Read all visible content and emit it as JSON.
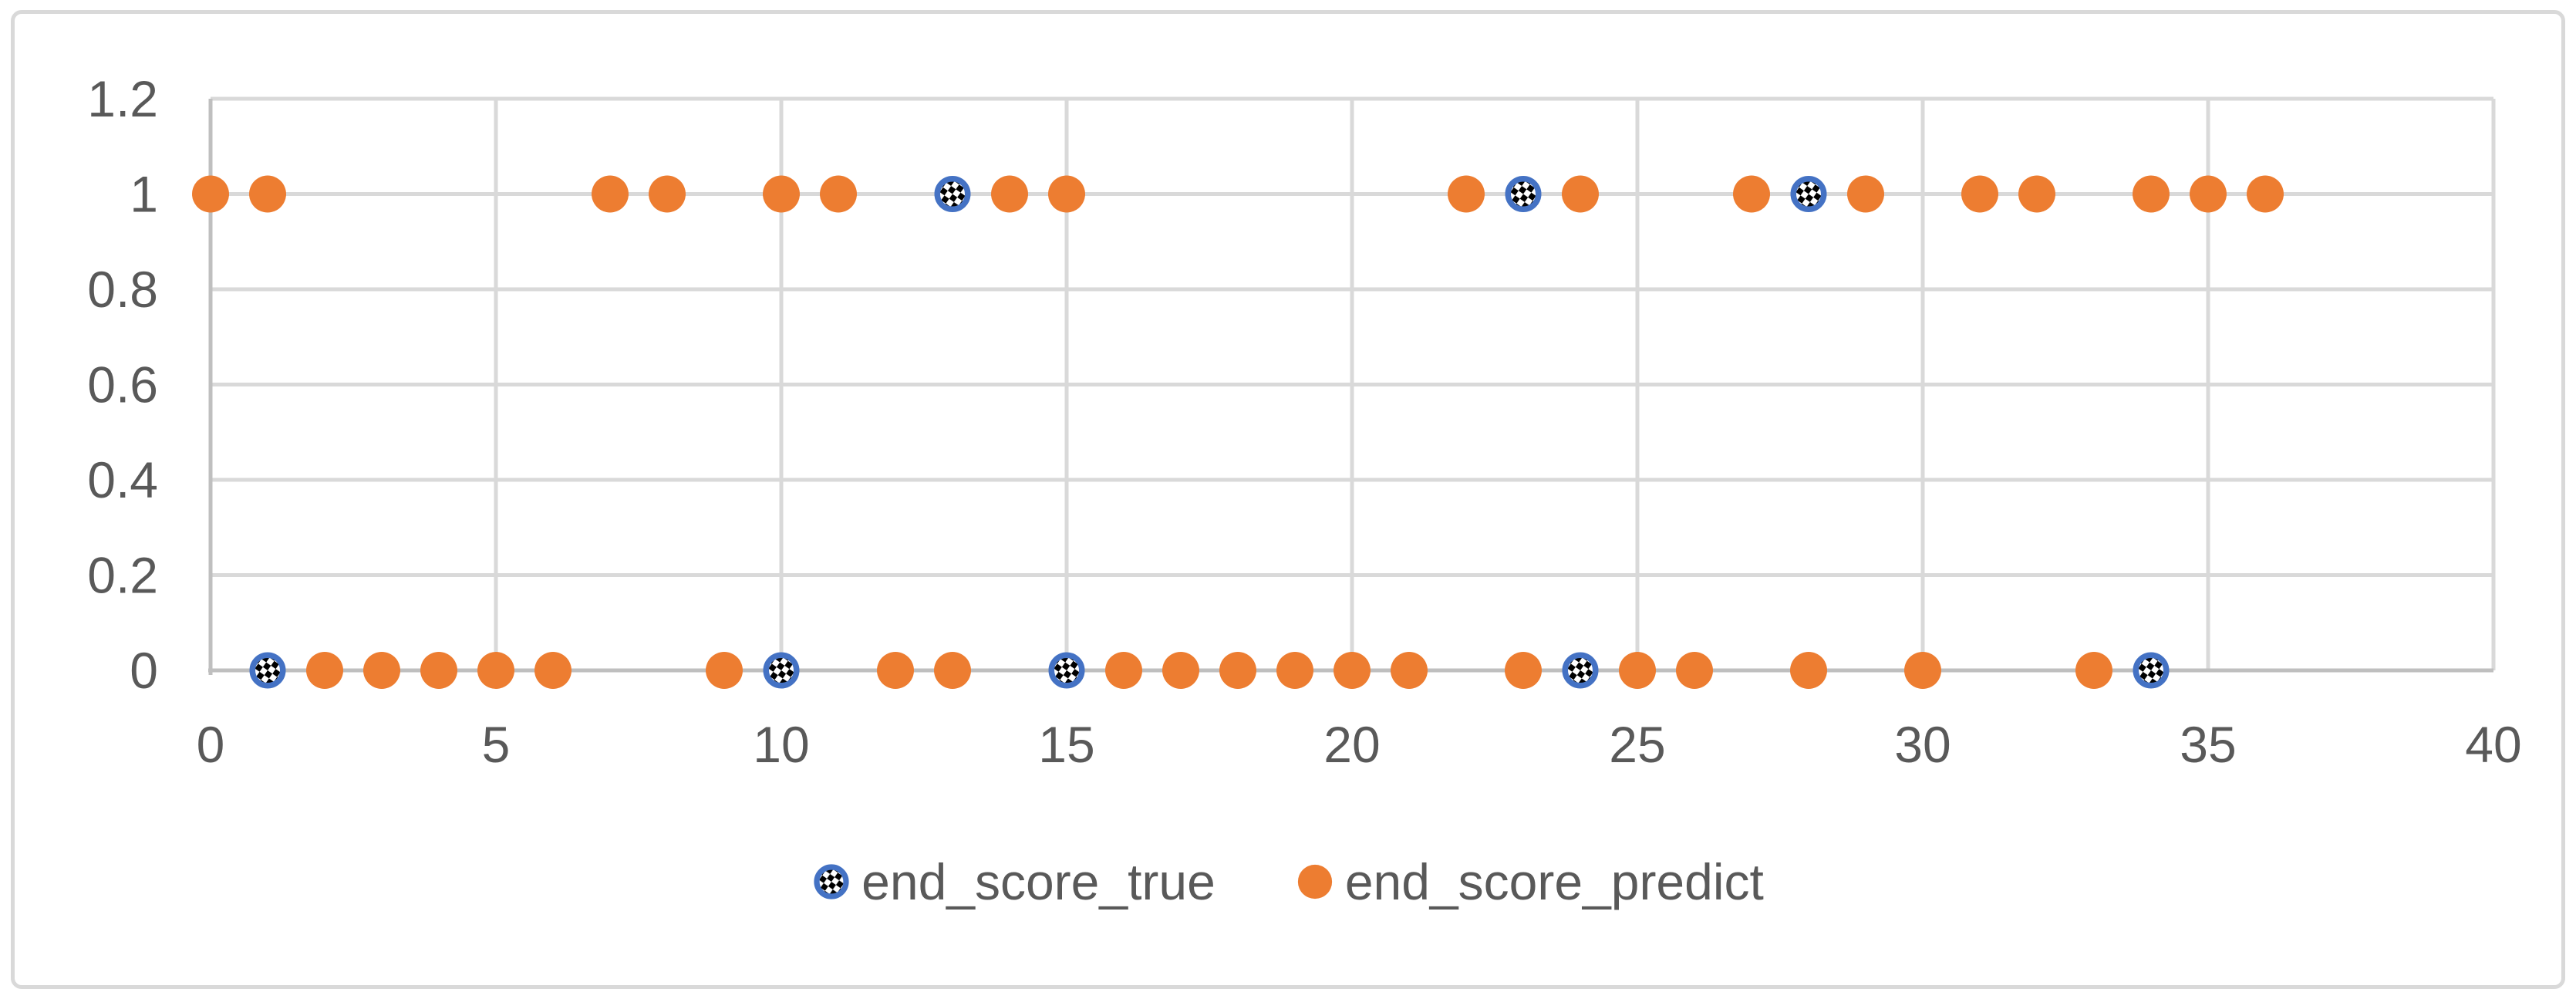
{
  "chart_data": {
    "type": "scatter",
    "title": "",
    "xlabel": "",
    "ylabel": "",
    "x": [
      0,
      1,
      2,
      3,
      4,
      5,
      6,
      7,
      8,
      9,
      10,
      11,
      12,
      13,
      14,
      15,
      16,
      17,
      18,
      19,
      20,
      21,
      22,
      23,
      24,
      25,
      26,
      27,
      28,
      29,
      30,
      31,
      32,
      33,
      34,
      35,
      36
    ],
    "series": [
      {
        "name": "end_score_true",
        "marker": "checkered-circle",
        "color": "#4472C4",
        "values": [
          1,
          0,
          0,
          0,
          0,
          0,
          0,
          1,
          1,
          0,
          0,
          1,
          0,
          1,
          1,
          0,
          0,
          0,
          0,
          0,
          0,
          0,
          1,
          1,
          0,
          0,
          0,
          1,
          1,
          1,
          0,
          1,
          1,
          0,
          0,
          1,
          1
        ]
      },
      {
        "name": "end_score_predict",
        "marker": "filled-circle",
        "color": "#ED7D31",
        "values": [
          1,
          1,
          0,
          0,
          0,
          0,
          0,
          1,
          1,
          0,
          1,
          1,
          0,
          0,
          1,
          1,
          0,
          0,
          0,
          0,
          0,
          0,
          1,
          0,
          1,
          0,
          0,
          1,
          0,
          1,
          0,
          1,
          1,
          0,
          1,
          1,
          1
        ]
      }
    ],
    "xlim": [
      0,
      40
    ],
    "ylim": [
      0,
      1.2
    ],
    "xticks": [
      0,
      5,
      10,
      15,
      20,
      25,
      30,
      35,
      40
    ],
    "yticks": [
      0,
      0.2,
      0.4,
      0.6,
      0.8,
      1,
      1.2
    ],
    "grid": true,
    "legend_position": "bottom-center",
    "style": {
      "background": "#FFFFFF",
      "frame_border_color": "#D9D9D9",
      "grid_color": "#D9D9D9",
      "axis_color": "#BFBFBF",
      "tick_label_color": "#595959",
      "legend_text_color": "#595959",
      "series_true_color": "#4472C4",
      "series_predict_color": "#ED7D31",
      "checker_black": "#000000",
      "checker_white": "#FFFFFF"
    }
  }
}
